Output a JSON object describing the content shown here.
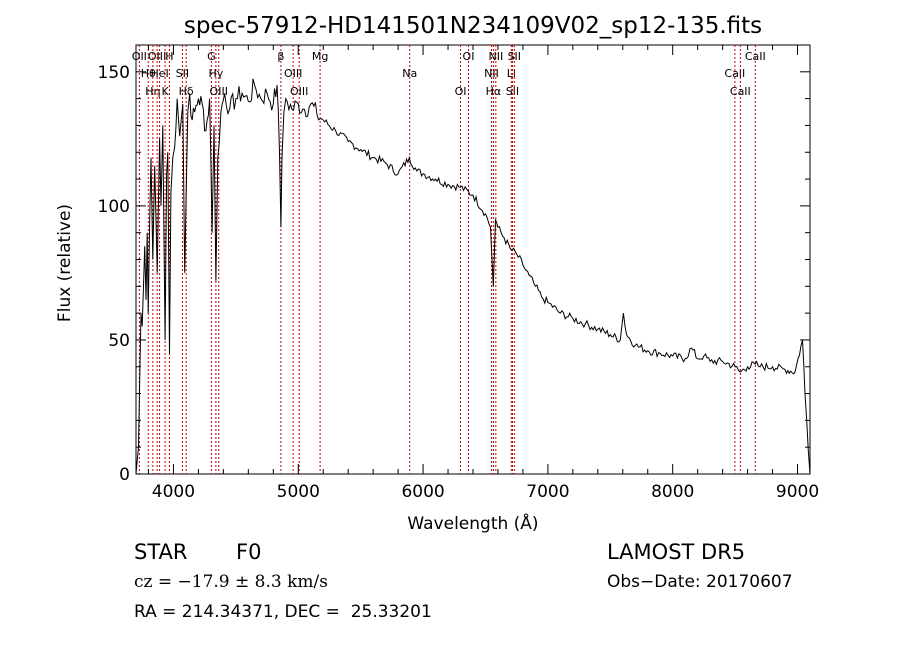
{
  "chart_data": {
    "type": "line",
    "title": "spec-57912-HD141501N234109V02_sp12-135.fits",
    "xlabel": "Wavelength (Å)",
    "ylabel": "Flux (relative)",
    "xlim": [
      3700,
      9100
    ],
    "ylim": [
      0,
      160
    ],
    "xticks": [
      4000,
      5000,
      6000,
      7000,
      8000,
      9000
    ],
    "yticks": [
      0,
      50,
      100,
      150
    ],
    "grid": false,
    "series": [
      {
        "x": [
          3700,
          3710,
          3720,
          3730,
          3740,
          3750,
          3760,
          3770,
          3780,
          3790,
          3798,
          3810,
          3820,
          3835,
          3850,
          3870,
          3889,
          3900,
          3915,
          3933,
          3945,
          3955,
          3968,
          3980,
          3995,
          4010,
          4030,
          4050,
          4075,
          4090,
          4102,
          4115,
          4130,
          4150,
          4170,
          4200,
          4230,
          4260,
          4290,
          4310,
          4325,
          4340,
          4355,
          4380,
          4410,
          4450,
          4500,
          4550,
          4600,
          4650,
          4700,
          4750,
          4800,
          4830,
          4850,
          4861,
          4870,
          4885,
          4900,
          4950,
          5000,
          5050,
          5100,
          5150,
          5200,
          5300,
          5400,
          5500,
          5600,
          5700,
          5800,
          5890,
          5950,
          6000,
          6100,
          6200,
          6300,
          6400,
          6500,
          6540,
          6563,
          6580,
          6600,
          6650,
          6700,
          6750,
          6800,
          6850,
          6900,
          6950,
          7000,
          7100,
          7200,
          7300,
          7400,
          7500,
          7580,
          7605,
          7630,
          7700,
          7800,
          7900,
          8000,
          8100,
          8150,
          8200,
          8250,
          8300,
          8400,
          8500,
          8540,
          8600,
          8660,
          8700,
          8800,
          8900,
          8980,
          9040,
          9060,
          9100
        ],
        "y": [
          0,
          5,
          10,
          35,
          60,
          55,
          70,
          85,
          65,
          90,
          60,
          95,
          118,
          80,
          115,
          75,
          125,
          100,
          130,
          50,
          112,
          120,
          45,
          105,
          118,
          122,
          140,
          126,
          138,
          75,
          105,
          135,
          142,
          132,
          135,
          140,
          138,
          128,
          140,
          90,
          130,
          72,
          118,
          135,
          142,
          136,
          140,
          142,
          139,
          145,
          140,
          142,
          138,
          145,
          120,
          92,
          118,
          135,
          140,
          136,
          138,
          136,
          138,
          134,
          132,
          128,
          124,
          121,
          118,
          116,
          112,
          118,
          113,
          112,
          110,
          108,
          107,
          104,
          97,
          92,
          70,
          95,
          92,
          88,
          84,
          82,
          78,
          74,
          70,
          66,
          64,
          60,
          58,
          56,
          54,
          52,
          50,
          60,
          52,
          48,
          46,
          45,
          44,
          43,
          47,
          43,
          44,
          42,
          42,
          40,
          38,
          40,
          41,
          40,
          40,
          39,
          38,
          50,
          30,
          0
        ]
      }
    ],
    "lines": [
      {
        "x": 3727,
        "label": "OII"
      },
      {
        "x": 3798,
        "label": "Hθ"
      },
      {
        "x": 3835,
        "label": "Hη"
      },
      {
        "x": 3869,
        "label": "OIII"
      },
      {
        "x": 3889,
        "label": "HeI"
      },
      {
        "x": 3933,
        "label": "K"
      },
      {
        "x": 3968,
        "label": "H"
      },
      {
        "x": 4072,
        "label": "SII"
      },
      {
        "x": 4102,
        "label": "Hδ"
      },
      {
        "x": 4304,
        "label": "G"
      },
      {
        "x": 4340,
        "label": "Hγ"
      },
      {
        "x": 4363,
        "label": "OIII"
      },
      {
        "x": 4861,
        "label": "β"
      },
      {
        "x": 4959,
        "label": "OIII"
      },
      {
        "x": 5007,
        "label": "OIII"
      },
      {
        "x": 5175,
        "label": "Mg"
      },
      {
        "x": 5893,
        "label": "Na"
      },
      {
        "x": 6300,
        "label": "OI"
      },
      {
        "x": 6364,
        "label": "OI"
      },
      {
        "x": 6548,
        "label": "NII"
      },
      {
        "x": 6563,
        "label": "Hα"
      },
      {
        "x": 6583,
        "label": "NII"
      },
      {
        "x": 6707,
        "label": "Li"
      },
      {
        "x": 6716,
        "label": "SII"
      },
      {
        "x": 6731,
        "label": "SII"
      },
      {
        "x": 8498,
        "label": "CaII"
      },
      {
        "x": 8542,
        "label": "CaII"
      },
      {
        "x": 8662,
        "label": "CaII"
      }
    ]
  },
  "footer": {
    "class_label": "STAR",
    "subclass_label": "F0",
    "survey": "LAMOST DR5",
    "cz": "cz = −17.9 ± 8.3 km/s",
    "obs_date": "Obs−Date: 20170607",
    "coords": "RA = 214.34371, DEC =  25.33201"
  }
}
